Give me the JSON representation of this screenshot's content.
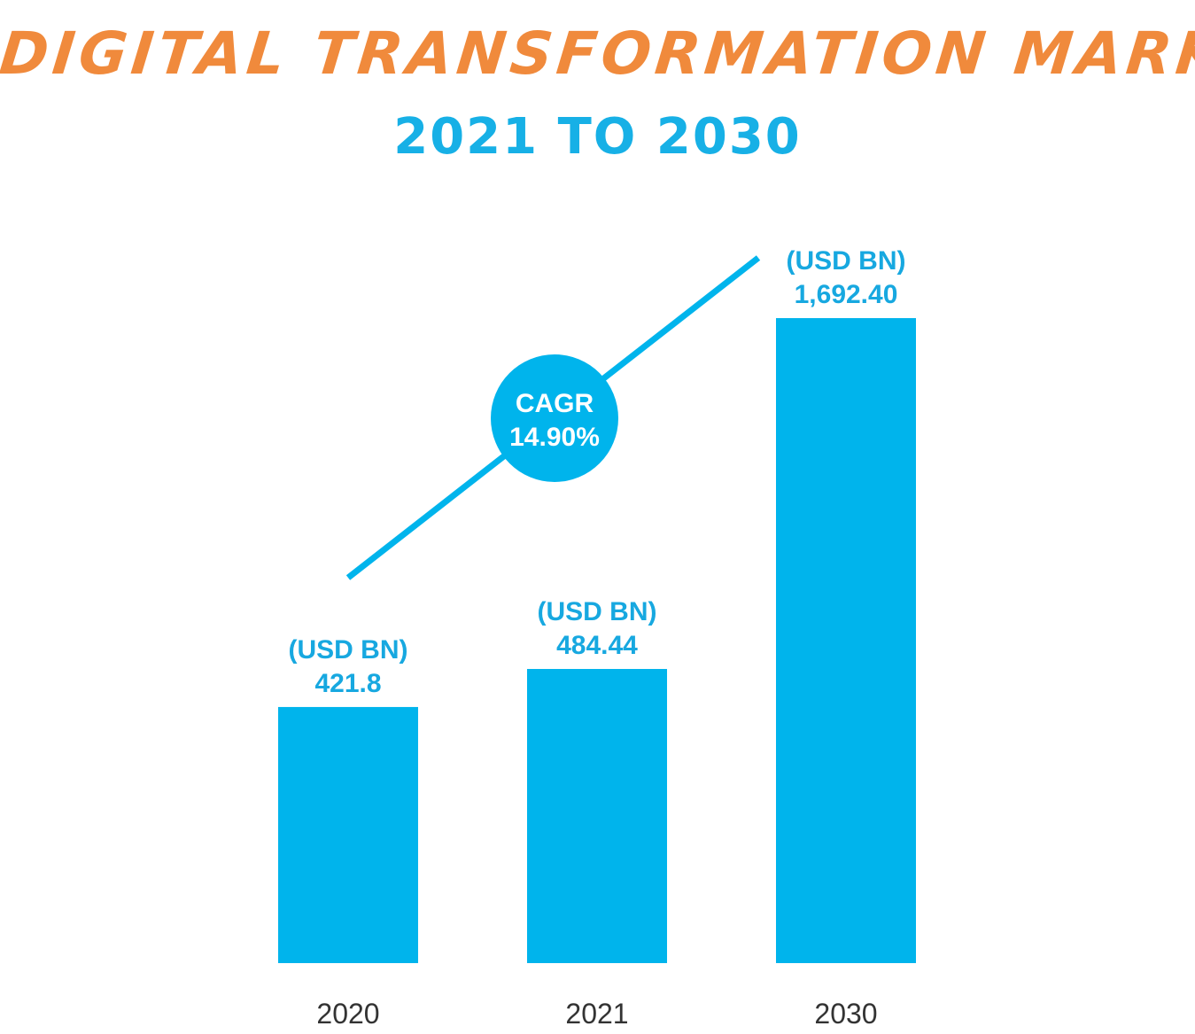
{
  "header": {
    "title": "DIGITAL TRANSFORMATION MARKET",
    "subtitle": "2021 TO 2030"
  },
  "colors": {
    "title": "#f08a3c",
    "bar": "#00b4ec",
    "label": "#17a8e0",
    "axis_text": "#333333"
  },
  "chart_data": {
    "type": "bar",
    "title": "DIGITAL TRANSFORMATION MARKET",
    "subtitle": "2021 TO 2030",
    "categories": [
      "2020",
      "2021",
      "2030"
    ],
    "values": [
      421.8,
      484.44,
      1692.4
    ],
    "value_labels": [
      "421.8",
      "484.44",
      "1,692.40"
    ],
    "unit_label": "(USD BN)",
    "annotation": {
      "label": "CAGR",
      "value": "14.90%"
    },
    "grid": false,
    "legend": "none"
  }
}
